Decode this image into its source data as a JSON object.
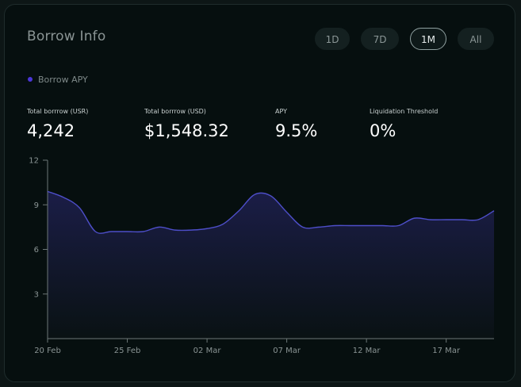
{
  "card": {
    "title": "Borrow Info",
    "tabs": [
      {
        "label": "1D",
        "active": false
      },
      {
        "label": "7D",
        "active": false
      },
      {
        "label": "1M",
        "active": true
      },
      {
        "label": "All",
        "active": false
      }
    ],
    "legend": "Borrow APY",
    "stats": [
      {
        "label": "Total borrrow (USR)",
        "value": "4,242"
      },
      {
        "label": "Total borrrow (USD)",
        "value": "$1,548.32"
      },
      {
        "label": "APY",
        "value": "9.5%"
      },
      {
        "label": "Liquidation Threshold",
        "value": "0%"
      }
    ]
  },
  "colors": {
    "background": "#060f0f",
    "line": "#4d4ec8",
    "legend_dot": "#4b36d8",
    "axis": "#6c7777"
  },
  "chart_data": {
    "type": "area",
    "series": [
      {
        "name": "Borrow APY",
        "x": [
          "20 Feb",
          "21 Feb",
          "22 Feb",
          "23 Feb",
          "24 Feb",
          "25 Feb",
          "26 Feb",
          "27 Feb",
          "28 Feb",
          "01 Mar",
          "02 Mar",
          "03 Mar",
          "04 Mar",
          "05 Mar",
          "06 Mar",
          "07 Mar",
          "08 Mar",
          "09 Mar",
          "10 Mar",
          "11 Mar",
          "12 Mar",
          "13 Mar",
          "14 Mar",
          "15 Mar",
          "16 Mar",
          "17 Mar",
          "18 Mar",
          "19 Mar",
          "20 Mar"
        ],
        "values": [
          9.9,
          9.5,
          8.8,
          7.2,
          7.2,
          7.2,
          7.2,
          7.5,
          7.3,
          7.3,
          7.4,
          7.7,
          8.6,
          9.7,
          9.6,
          8.5,
          7.5,
          7.5,
          7.6,
          7.6,
          7.6,
          7.6,
          7.6,
          8.1,
          8.0,
          8.0,
          8.0,
          8.0,
          8.6
        ]
      }
    ],
    "x_tick_labels": [
      "20 Feb",
      "25 Feb",
      "02 Mar",
      "07 Mar",
      "12 Mar",
      "17 Mar"
    ],
    "y_ticks": [
      3,
      6,
      9,
      12
    ],
    "ylim": [
      0,
      12
    ],
    "grid": false
  }
}
